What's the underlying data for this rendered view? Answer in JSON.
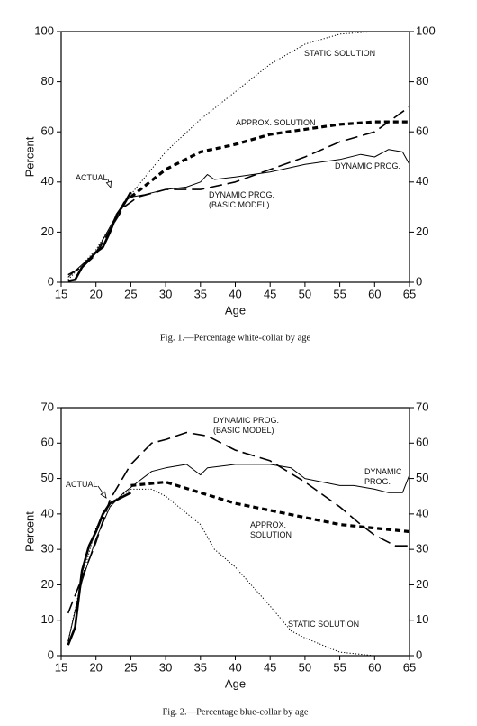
{
  "chart_data": [
    {
      "type": "line",
      "title": "Fig. 1.—Percentage white-collar by age",
      "xlabel": "Age",
      "ylabel": "Percent",
      "xlim": [
        15,
        65
      ],
      "xticks": [
        15,
        20,
        25,
        30,
        35,
        40,
        45,
        50,
        55,
        60,
        65
      ],
      "ylim": [
        0,
        100
      ],
      "yticks": [
        0,
        20,
        40,
        60,
        80,
        100
      ],
      "y2lim": [
        0,
        100
      ],
      "y2ticks": [
        0,
        20,
        40,
        60,
        80,
        100
      ],
      "series": [
        {
          "name": "ACTUAL",
          "color": "#000",
          "style": "solid-thick",
          "x": [
            16,
            17,
            18,
            19,
            20,
            21,
            22,
            23,
            24,
            25
          ],
          "values": [
            0.5,
            1,
            6,
            9,
            12,
            14,
            20,
            27,
            31,
            36
          ]
        },
        {
          "name": "STATIC SOLUTION",
          "color": "#000",
          "style": "dotted",
          "x": [
            16,
            20,
            25,
            30,
            35,
            40,
            45,
            50,
            55,
            60,
            65
          ],
          "values": [
            1,
            13,
            35,
            52,
            65,
            76,
            87,
            95,
            99,
            100,
            100
          ]
        },
        {
          "name": "APPROX. SOLUTION",
          "color": "#000",
          "style": "dashed-thick",
          "x": [
            25,
            30,
            35,
            40,
            45,
            50,
            55,
            60,
            65
          ],
          "values": [
            34,
            45,
            52,
            55,
            59,
            61,
            63,
            64,
            64
          ]
        },
        {
          "name": "DYNAMIC PROG.",
          "color": "#000",
          "style": "solid",
          "x": [
            16,
            18,
            20,
            22,
            24,
            25,
            27,
            30,
            33,
            35,
            36,
            37,
            40,
            45,
            50,
            55,
            58,
            60,
            62,
            64,
            65
          ],
          "values": [
            2,
            7,
            12,
            22,
            32,
            34,
            35,
            37,
            38,
            40,
            43,
            41,
            42,
            44,
            47,
            49,
            51,
            50,
            53,
            52,
            47
          ]
        },
        {
          "name": "DYNAMIC PROG. (BASIC MODEL)",
          "color": "#000",
          "style": "long-dash",
          "x": [
            16,
            18,
            20,
            22,
            24,
            26,
            30,
            35,
            40,
            45,
            50,
            55,
            60,
            65
          ],
          "values": [
            3,
            6,
            11,
            21,
            30,
            34,
            37,
            37,
            40,
            45,
            50,
            56,
            60,
            70
          ]
        }
      ]
    },
    {
      "type": "line",
      "title": "Fig. 2.—Percentage blue-collar by age",
      "xlabel": "Age",
      "ylabel": "Percent",
      "xlim": [
        15,
        65
      ],
      "xticks": [
        15,
        20,
        25,
        30,
        35,
        40,
        45,
        50,
        55,
        60,
        65
      ],
      "ylim": [
        0,
        70
      ],
      "yticks": [
        0,
        10,
        20,
        30,
        40,
        50,
        60,
        70
      ],
      "y2lim": [
        0,
        70
      ],
      "y2ticks": [
        0,
        10,
        20,
        30,
        40,
        50,
        60,
        70
      ],
      "series": [
        {
          "name": "ACTUAL",
          "color": "#000",
          "style": "solid-thick",
          "x": [
            16,
            17,
            18,
            19,
            20,
            21,
            22,
            23,
            24,
            25
          ],
          "values": [
            3,
            8,
            24,
            31,
            35,
            40,
            43,
            44,
            45,
            46
          ]
        },
        {
          "name": "STATIC SOLUTION",
          "color": "#000",
          "style": "dotted",
          "x": [
            16,
            18,
            20,
            22,
            25,
            28,
            30,
            35,
            37,
            40,
            45,
            48,
            50,
            55,
            60,
            65
          ],
          "values": [
            4,
            22,
            36,
            43,
            47,
            47,
            45,
            37,
            30,
            25,
            14,
            7,
            5,
            1,
            0,
            0
          ]
        },
        {
          "name": "APPROX. SOLUTION",
          "color": "#000",
          "style": "dashed-thick",
          "x": [
            25,
            30,
            35,
            40,
            45,
            50,
            55,
            60,
            65
          ],
          "values": [
            48,
            49,
            46,
            43,
            41,
            39,
            37,
            36,
            35
          ]
        },
        {
          "name": "DYNAMIC PROG.",
          "color": "#000",
          "style": "solid",
          "x": [
            16,
            18,
            20,
            22,
            24,
            26,
            28,
            30,
            33,
            35,
            36,
            40,
            45,
            48,
            50,
            55,
            57,
            60,
            62,
            64,
            65
          ],
          "values": [
            4,
            21,
            33,
            42,
            46,
            49,
            52,
            53,
            54,
            51,
            53,
            54,
            54,
            53,
            50,
            48,
            48,
            47,
            46,
            46,
            51
          ]
        },
        {
          "name": "DYNAMIC PROG. (BASIC MODEL)",
          "color": "#000",
          "style": "long-dash",
          "x": [
            16,
            18,
            20,
            22,
            25,
            28,
            30,
            33,
            36,
            40,
            45,
            50,
            55,
            58,
            60,
            63,
            65
          ],
          "values": [
            12,
            22,
            32,
            44,
            54,
            60,
            61,
            63,
            62,
            58,
            55,
            49,
            42,
            37,
            34,
            31,
            31
          ]
        }
      ]
    }
  ]
}
